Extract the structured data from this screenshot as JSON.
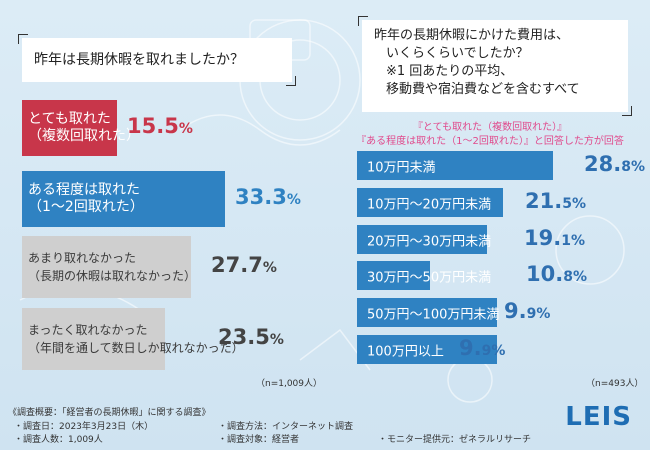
{
  "question_left": "昨年は長期休暇を取れましたか？",
  "question_right": {
    "lines": [
      "昨年の長期休暇にかけた費用は、",
      "いくらくらいでしたか？",
      "※1 回あたりの平均、",
      "移動費や宿泊費などを含むすべて"
    ]
  },
  "note_right": {
    "line1": "『とても取れた（複数回取れた）』",
    "line2": "『ある程度は取れた（1～2回取れた）』と回答した方が回答"
  },
  "chart_data": [
    {
      "type": "bar",
      "orientation": "horizontal",
      "categories": [
        [
          "とても取れた",
          "（複数回取れた）"
        ],
        [
          "ある程度は取れた",
          "（1～2回取れた）"
        ],
        [
          "あまり取れなかった",
          "（長期の休暇は取れなかった）"
        ],
        [
          "まったく取れなかった",
          "（年間を通して数日しか取れなかった）"
        ]
      ],
      "values": [
        15.5,
        33.3,
        27.7,
        23.5
      ],
      "value_labels": [
        [
          "15.5",
          "%"
        ],
        [
          "33.3",
          "%"
        ],
        [
          "27.7",
          "%"
        ],
        [
          "23.5",
          "%"
        ]
      ],
      "colors": [
        "#c8364a",
        "#2f82c2",
        "#cfcfcf",
        "#cfcfcf"
      ],
      "value_colors": [
        "#c8364a",
        "#2f82c2",
        "#444444",
        "#444444"
      ],
      "sample": "（n=1,009人）"
    },
    {
      "type": "bar",
      "orientation": "horizontal",
      "categories": [
        "10万円未満",
        "10万円～20万円未満",
        "20万円～30万円未満",
        "30万円～50万円未満",
        "50万円～100万円未満",
        "100万円以上"
      ],
      "values": [
        28.8,
        21.5,
        19.1,
        10.8,
        9.9,
        9.9
      ],
      "value_labels": [
        [
          "28.",
          "8%"
        ],
        [
          "21.",
          "5%"
        ],
        [
          "19.",
          "1%"
        ],
        [
          "10.",
          "8%"
        ],
        [
          "9.",
          "9%"
        ],
        [
          "9.",
          "9%"
        ]
      ],
      "colors": [
        "#2f82c2"
      ],
      "value_colors": [
        "#2f6fb0"
      ],
      "sample": "（n=493人）"
    }
  ],
  "footer": {
    "title": "《調査概要：「経営者の長期休暇」に関する調査》",
    "date": "・調査日：2023年3月23日（木）",
    "method": "・調査方法：インターネット調査",
    "count": "・調査人数：1,009人",
    "target": "・調査対象：経営者",
    "provider": "・モニター提供元：ゼネラルリサーチ"
  },
  "logo": "LEIS"
}
